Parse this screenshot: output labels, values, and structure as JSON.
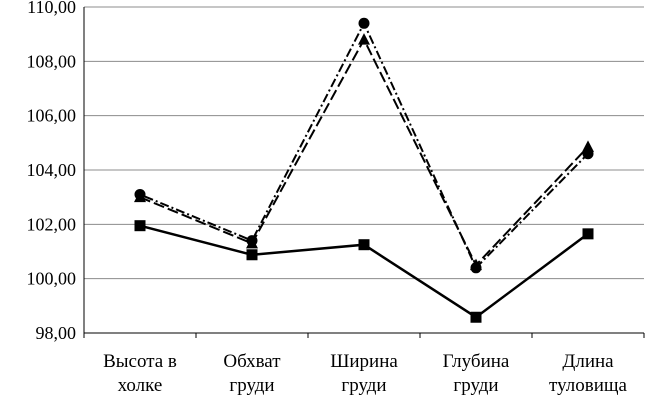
{
  "chart_data": {
    "type": "line",
    "categories": [
      [
        "Высота в",
        "холке"
      ],
      [
        "Обхват",
        "груди"
      ],
      [
        "Ширина",
        "груди"
      ],
      [
        "Глубина",
        "груди"
      ],
      [
        "Длина",
        "туловища"
      ]
    ],
    "ylim": [
      98,
      110
    ],
    "ytick_values": [
      98,
      100,
      102,
      104,
      106,
      108,
      110
    ],
    "ytick_labels": [
      "98,00",
      "100,00",
      "102,00",
      "104,00",
      "106,00",
      "108,00",
      "110,00"
    ],
    "grid": true,
    "legend": "none",
    "series": [
      {
        "marker": "square",
        "line_style": "solid",
        "values": [
          101.95,
          100.88,
          101.25,
          98.58,
          101.65
        ]
      },
      {
        "marker": "triangle",
        "line_style": "dash",
        "values": [
          103.0,
          101.3,
          108.8,
          100.5,
          104.85
        ]
      },
      {
        "marker": "circle",
        "line_style": "dot-dash",
        "values": [
          103.1,
          101.4,
          109.4,
          100.4,
          104.6
        ]
      }
    ]
  }
}
